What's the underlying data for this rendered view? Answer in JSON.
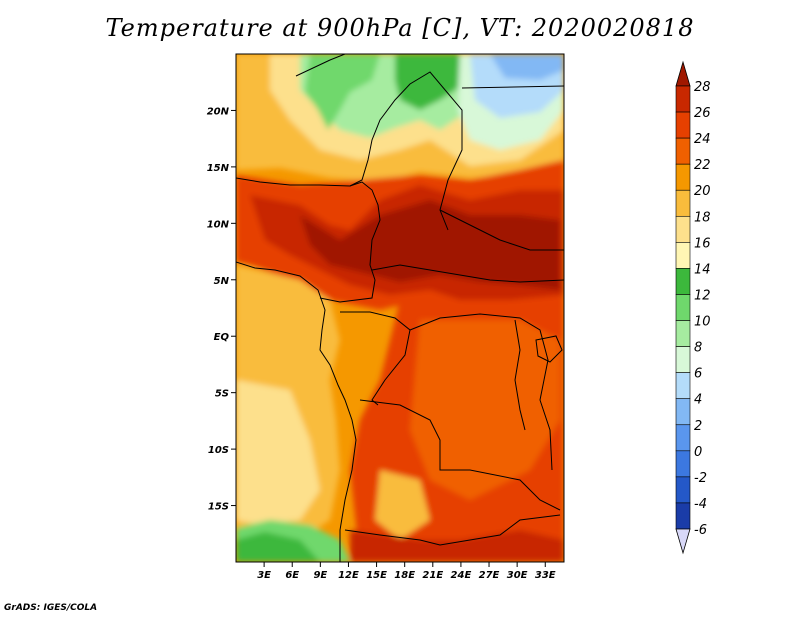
{
  "title": "Temperature at 900hPa [C], VT: 2020020818",
  "credit": "GrADS: IGES/COLA",
  "map": {
    "lon_range": [
      0,
      35
    ],
    "lat_range": [
      -20,
      25
    ],
    "lon_ticks": [
      "3E",
      "6E",
      "9E",
      "12E",
      "15E",
      "18E",
      "21E",
      "24E",
      "27E",
      "30E",
      "33E"
    ],
    "lat_ticks": [
      "20N",
      "15N",
      "10N",
      "5N",
      "EQ",
      "5S",
      "10S",
      "15S"
    ]
  },
  "colorbar": {
    "levels": [
      "28",
      "26",
      "24",
      "22",
      "20",
      "18",
      "16",
      "14",
      "12",
      "10",
      "8",
      "6",
      "4",
      "2",
      "0",
      "-2",
      "-4",
      "-6"
    ],
    "colors": [
      "#a01800",
      "#c82800",
      "#e64000",
      "#f06000",
      "#f59800",
      "#f9bc3c",
      "#fde08c",
      "#fff6b4",
      "#3cb83c",
      "#6fd86c",
      "#a6eca0",
      "#d8f8d8",
      "#b4dcfa",
      "#82b8f4",
      "#5a96ee",
      "#3c78e0",
      "#2458c8",
      "#1a3ca8",
      "#0a1a78",
      "#d8d8f8"
    ]
  }
}
